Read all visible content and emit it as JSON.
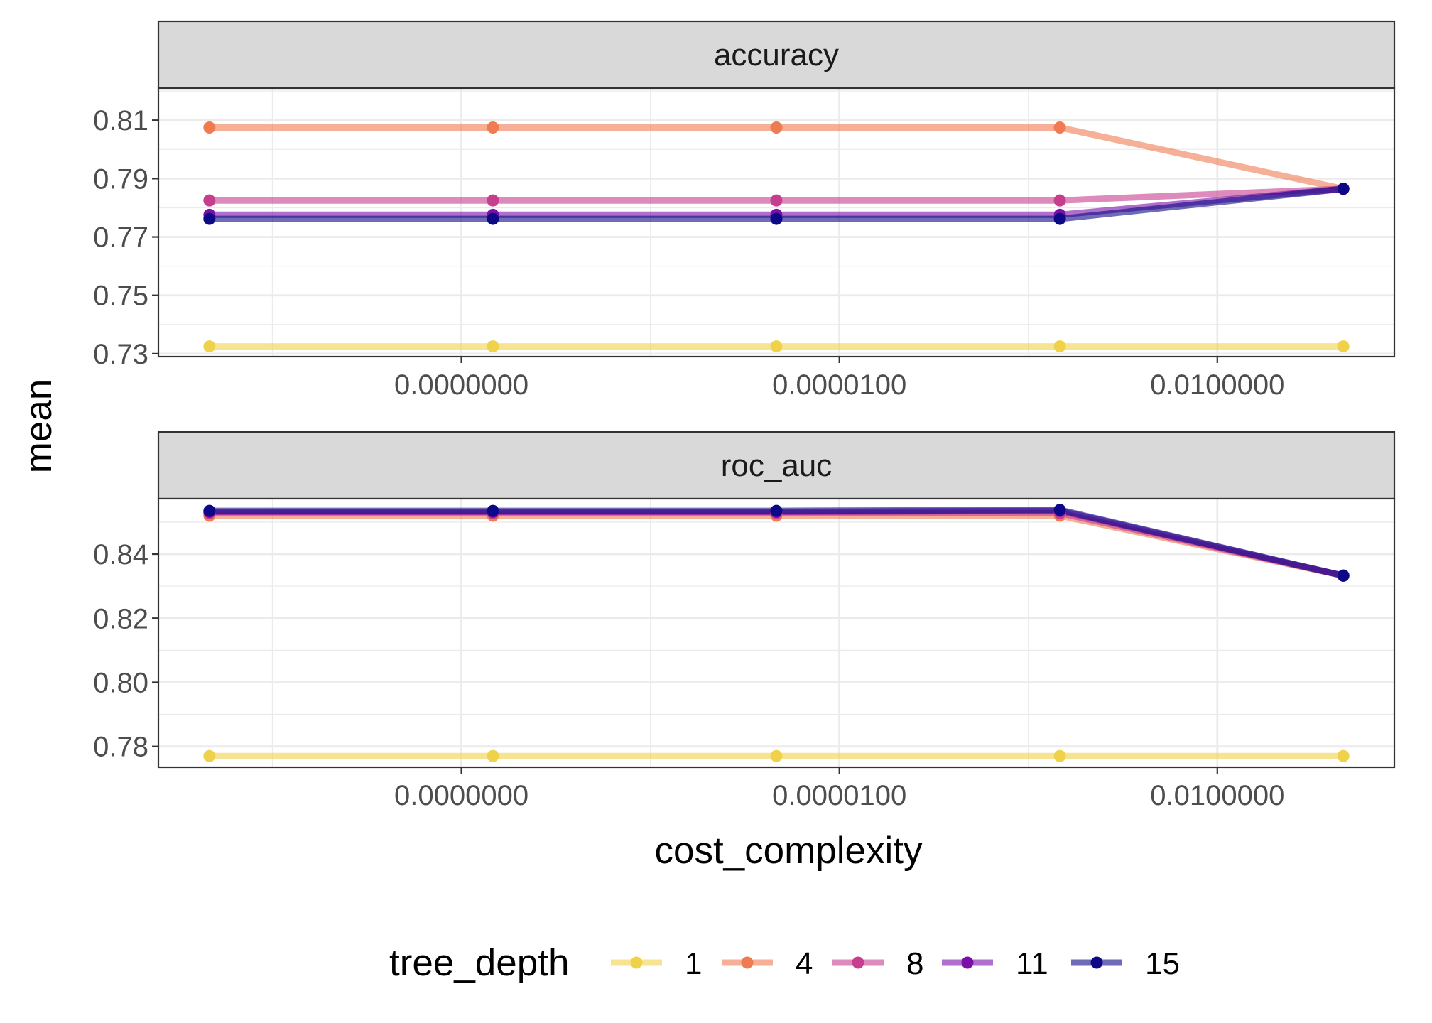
{
  "chart_data": {
    "type": "line",
    "xlabel": "cost_complexity",
    "ylabel": "mean",
    "x_scale": "log10",
    "x_values": [
      1e-10,
      1.778e-08,
      3.162e-06,
      0.0005623,
      0.1
    ],
    "x_ticks": [
      {
        "value": 1e-08,
        "label": "0.0000000"
      },
      {
        "value": 1e-05,
        "label": "0.0000100"
      },
      {
        "value": 0.01,
        "label": "0.0100000"
      }
    ],
    "legend": {
      "title": "tree_depth",
      "position": "bottom"
    },
    "series_styles": [
      {
        "name": "1",
        "color": "#F0D24A"
      },
      {
        "name": "4",
        "color": "#EE7B51"
      },
      {
        "name": "8",
        "color": "#C73E8F"
      },
      {
        "name": "11",
        "color": "#7A10A8"
      },
      {
        "name": "15",
        "color": "#0D0887"
      }
    ],
    "panels": [
      {
        "strip": "accuracy",
        "ylim": [
          0.729,
          0.821
        ],
        "y_ticks": [
          0.73,
          0.75,
          0.77,
          0.79,
          0.81
        ],
        "y_tick_labels": [
          "0.73",
          "0.75",
          "0.77",
          "0.79",
          "0.81"
        ],
        "series": [
          {
            "name": "1",
            "values": [
              0.7325,
              0.7325,
              0.7325,
              0.7325,
              0.7325
            ]
          },
          {
            "name": "4",
            "values": [
              0.8075,
              0.8075,
              0.8075,
              0.8075,
              0.7865
            ]
          },
          {
            "name": "8",
            "values": [
              0.7825,
              0.7825,
              0.7825,
              0.7825,
              0.7865
            ]
          },
          {
            "name": "11",
            "values": [
              0.7776,
              0.7776,
              0.7776,
              0.7776,
              0.7865
            ]
          },
          {
            "name": "15",
            "values": [
              0.7762,
              0.7762,
              0.7762,
              0.7762,
              0.7865
            ]
          }
        ]
      },
      {
        "strip": "roc_auc",
        "ylim": [
          0.7735,
          0.8573
        ],
        "y_ticks": [
          0.78,
          0.8,
          0.82,
          0.84
        ],
        "y_tick_labels": [
          "0.78",
          "0.80",
          "0.82",
          "0.84"
        ],
        "series": [
          {
            "name": "1",
            "values": [
              0.777,
              0.777,
              0.777,
              0.777,
              0.777
            ]
          },
          {
            "name": "4",
            "values": [
              0.852,
              0.852,
              0.852,
              0.852,
              0.8333
            ]
          },
          {
            "name": "8",
            "values": [
              0.8528,
              0.8528,
              0.8528,
              0.8528,
              0.8333
            ]
          },
          {
            "name": "11",
            "values": [
              0.8532,
              0.8532,
              0.8532,
              0.8535,
              0.8333
            ]
          },
          {
            "name": "15",
            "values": [
              0.8535,
              0.8535,
              0.8535,
              0.8538,
              0.8333
            ]
          }
        ]
      }
    ]
  }
}
